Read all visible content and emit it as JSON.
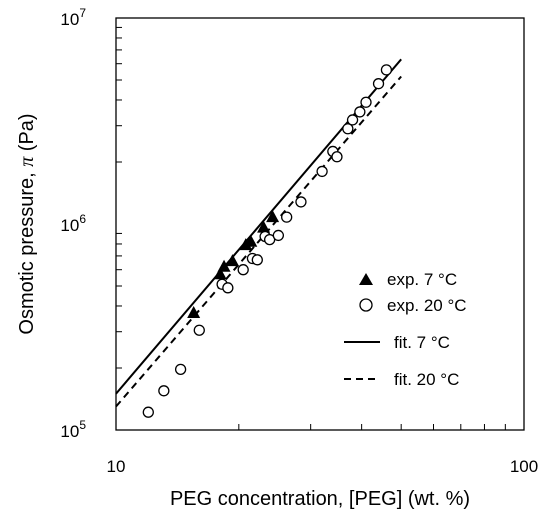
{
  "chart_data": {
    "type": "scatter",
    "xlabel": "PEG concentration, [PEG] (wt. %)",
    "ylabel_prefix": "Osmotic pressure, ",
    "ylabel_symbol": "π",
    "ylabel_suffix": " (Pa)",
    "xscale": "log",
    "yscale": "log",
    "xlim": [
      10,
      100
    ],
    "ylim": [
      100000,
      10000000
    ],
    "x_tick_labels": [
      "10",
      "100"
    ],
    "y_ticks": [
      {
        "base": "10",
        "exp": "5"
      },
      {
        "base": "10",
        "exp": "6"
      },
      {
        "base": "10",
        "exp": "7"
      }
    ],
    "grid": false,
    "legend_position": "bottom-right",
    "series": [
      {
        "name": "exp. 7 °C",
        "marker": "filled-triangle",
        "color": "#000000",
        "x": [
          15.5,
          18.0,
          18.4,
          19.3,
          20.8,
          21.4,
          23.0,
          24.2
        ],
        "y": [
          370000,
          570000,
          620000,
          660000,
          790000,
          820000,
          960000,
          1080000
        ]
      },
      {
        "name": "exp. 20 °C",
        "marker": "open-circle",
        "color": "#000000",
        "x": [
          12.0,
          13.1,
          14.4,
          16.0,
          18.2,
          18.8,
          20.5,
          21.6,
          22.2,
          23.2,
          23.8,
          25.0,
          26.2,
          28.4,
          32.0,
          34.0,
          34.8,
          37.0,
          38.0,
          39.6,
          41.0,
          44.0,
          46.0
        ],
        "y": [
          122000,
          155000,
          197000,
          305000,
          510000,
          490000,
          600000,
          680000,
          670000,
          870000,
          840000,
          880000,
          1080000,
          1280000,
          1800000,
          2250000,
          2120000,
          2900000,
          3200000,
          3500000,
          3900000,
          4800000,
          5600000
        ]
      },
      {
        "name": "fit. 7 °C",
        "line_style": "solid",
        "color": "#000000",
        "x": [
          10,
          50
        ],
        "y": [
          150000,
          6300000
        ]
      },
      {
        "name": "fit. 20 °C",
        "line_style": "dashed",
        "color": "#000000",
        "x": [
          10,
          50
        ],
        "y": [
          130000,
          5200000
        ]
      }
    ]
  }
}
